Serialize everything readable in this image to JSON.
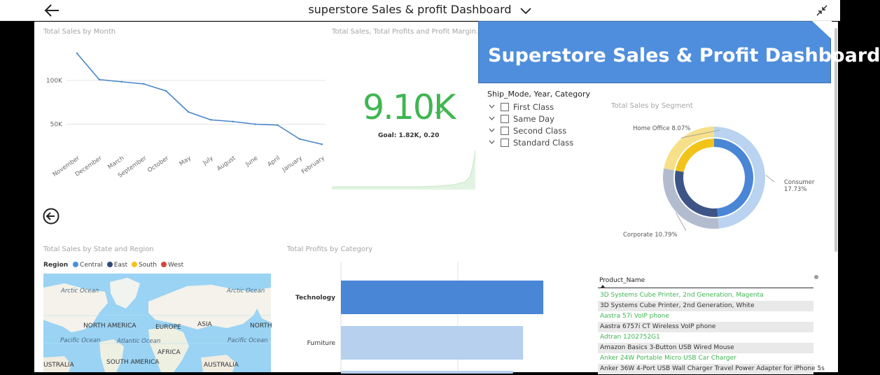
{
  "header": {
    "title": "superstore Sales & profit Dashboard"
  },
  "banner": {
    "text": "Superstore Sales & Profit Dashboard"
  },
  "visuals": {
    "sales_by_month_title": "Total Sales by Month",
    "kpi_title": "Total Sales, Total Profits and Profit Margin...",
    "segment_title": "Total Sales by Segment",
    "state_region_title": "Total Sales by State and Region",
    "profits_category_title": "Total Profits by Category"
  },
  "kpi": {
    "value": "9.10K",
    "goal": "Goal: 1.82K, 0.20"
  },
  "slicer": {
    "title": "Ship_Mode, Year, Category",
    "items": [
      "First Class",
      "Same Day",
      "Second Class",
      "Standard Class"
    ]
  },
  "map": {
    "legend_title": "Region",
    "regions": [
      {
        "name": "Central",
        "color": "#4a90d9"
      },
      {
        "name": "East",
        "color": "#2e4a7a"
      },
      {
        "name": "South",
        "color": "#f2c319"
      },
      {
        "name": "West",
        "color": "#d9443a"
      }
    ],
    "labels": {
      "arctic_left": "Arctic Ocean",
      "arctic_right": "Arctic Ocean",
      "north_america_left": "NORTH AMERICA",
      "europe": "EUROPE",
      "asia": "ASIA",
      "north_america_right": "NORTH",
      "pacific_left": "Pacific Ocean",
      "atlantic": "Atlantic Ocean",
      "pacific_right": "Pacific Ocean",
      "africa": "AFRICA",
      "australia_left": "USTRALIA",
      "south_america": "SOUTH AMERICA",
      "australia_right": "AUSTRALIA"
    }
  },
  "table": {
    "header": "Product_Name",
    "rows": [
      {
        "name": "3D Systems Cube Printer, 2nd Generation, Magenta",
        "color": "#3fb651"
      },
      {
        "name": "3D Systems Cube Printer, 2nd Generation, White",
        "color": "#333333"
      },
      {
        "name": "Aastra 57i VoIP phone",
        "color": "#3fb651"
      },
      {
        "name": "Aastra 6757i CT Wireless VoIP phone",
        "color": "#333333"
      },
      {
        "name": "Adtran 1202752G1",
        "color": "#3fb651"
      },
      {
        "name": "Amazon Basics 3-Button USB Wired Mouse",
        "color": "#333333"
      },
      {
        "name": "Anker 24W Portable Micro USB Car Charger",
        "color": "#3fb651"
      },
      {
        "name": "Anker 36W 4-Port USB Wall Charger Travel Power Adapter for iPhone 5s",
        "color": "#333333"
      }
    ]
  },
  "colors": {
    "line": "#4a86c8",
    "kpi_green": "#3fb651",
    "banner": "#4f8edc",
    "bar_dark": "#4a86d6",
    "bar_light": "#b6d0ee"
  },
  "chart_data": [
    {
      "type": "line",
      "categories": [
        "November",
        "December",
        "March",
        "September",
        "October",
        "May",
        "July",
        "August",
        "June",
        "April",
        "January",
        "February"
      ],
      "values": [
        131000,
        101000,
        98500,
        96000,
        88000,
        64000,
        55000,
        53000,
        50000,
        49000,
        33000,
        27000
      ],
      "yticks": [
        "100K",
        "50K"
      ],
      "ytick_values": [
        100000,
        50000
      ],
      "ylim": [
        20000,
        140000
      ],
      "grid": true
    },
    {
      "type": "pie",
      "categories": [
        "Consumer",
        "Corporate",
        "Home Office"
      ],
      "labels": [
        "Consumer 17.73%",
        "Corporate 10.79%",
        "Home Office 8.07%"
      ],
      "values": [
        17.73,
        10.79,
        8.07
      ],
      "colors": [
        "#4a86d6",
        "#3d5486",
        "#f2c319"
      ],
      "outer_colors": [
        "#b9d3f0",
        "#b3bccf",
        "#f7e08a"
      ]
    },
    {
      "type": "bar",
      "orientation": "horizontal",
      "categories": [
        "Technology",
        "Furniture"
      ],
      "values": [
        100,
        90
      ],
      "xlim": [
        0,
        110
      ]
    }
  ]
}
